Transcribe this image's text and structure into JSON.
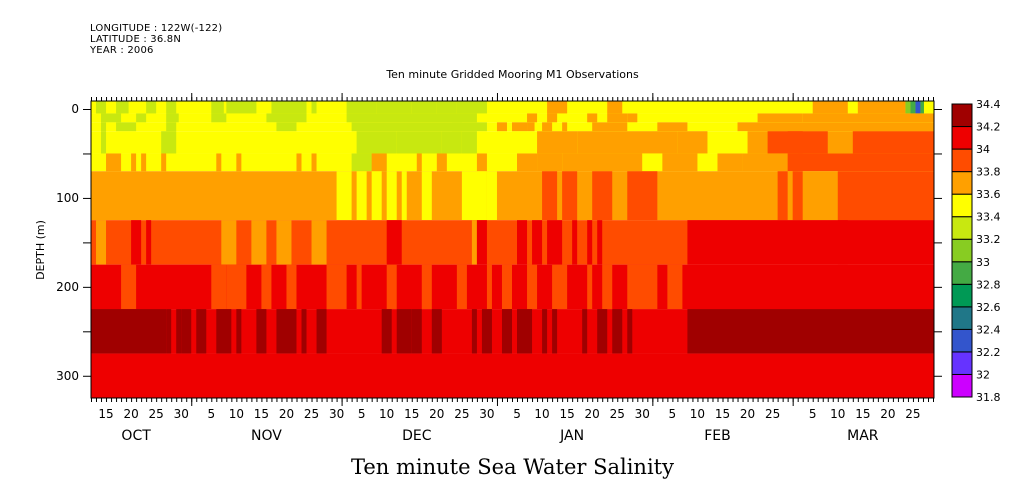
{
  "header": {
    "longitude": "LONGITUDE : 122W(-122)",
    "latitude": "LATITUDE : 36.8N",
    "year": "YEAR : 2006"
  },
  "chart_data": {
    "type": "heatmap",
    "title": "Ten minute Gridded Mooring M1 Observations",
    "bottom_title": "Ten minute Sea Water Salinity",
    "xlabel": "",
    "ylabel": "DEPTH (m)",
    "x_units": "days since 2006-10-01",
    "xlim": [
      11,
      179.2
    ],
    "ylim": [
      325,
      -9
    ],
    "y_ticks": [
      0,
      100,
      200,
      300
    ],
    "y_tick_labels": [
      "0",
      "100",
      "200",
      "300"
    ],
    "x_day_ticks": [
      {
        "day": 14,
        "label": "15"
      },
      {
        "day": 19,
        "label": "20"
      },
      {
        "day": 24,
        "label": "25"
      },
      {
        "day": 29,
        "label": "30"
      },
      {
        "day": 35,
        "label": "5"
      },
      {
        "day": 40,
        "label": "10"
      },
      {
        "day": 45,
        "label": "15"
      },
      {
        "day": 50,
        "label": "20"
      },
      {
        "day": 55,
        "label": "25"
      },
      {
        "day": 60,
        "label": "30"
      },
      {
        "day": 65,
        "label": "5"
      },
      {
        "day": 70,
        "label": "10"
      },
      {
        "day": 75,
        "label": "15"
      },
      {
        "day": 80,
        "label": "20"
      },
      {
        "day": 85,
        "label": "25"
      },
      {
        "day": 90,
        "label": "30"
      },
      {
        "day": 96,
        "label": "5"
      },
      {
        "day": 101,
        "label": "10"
      },
      {
        "day": 106,
        "label": "15"
      },
      {
        "day": 111,
        "label": "20"
      },
      {
        "day": 116,
        "label": "25"
      },
      {
        "day": 121,
        "label": "30"
      },
      {
        "day": 127,
        "label": "5"
      },
      {
        "day": 132,
        "label": "10"
      },
      {
        "day": 137,
        "label": "15"
      },
      {
        "day": 142,
        "label": "20"
      },
      {
        "day": 147,
        "label": "25"
      },
      {
        "day": 155,
        "label": "5"
      },
      {
        "day": 160,
        "label": "10"
      },
      {
        "day": 165,
        "label": "15"
      },
      {
        "day": 170,
        "label": "20"
      },
      {
        "day": 175,
        "label": "25"
      }
    ],
    "month_labels": [
      {
        "day": 20,
        "label": "OCT"
      },
      {
        "day": 46,
        "label": "NOV"
      },
      {
        "day": 76,
        "label": "DEC"
      },
      {
        "day": 107,
        "label": "JAN"
      },
      {
        "day": 136,
        "label": "FEB"
      },
      {
        "day": 165,
        "label": "MAR"
      }
    ],
    "month_boundaries": [
      31,
      61,
      92,
      123,
      151
    ],
    "colorbar": {
      "levels": [
        31.8,
        32,
        32.2,
        32.4,
        32.6,
        32.8,
        33,
        33.2,
        33.4,
        33.6,
        33.8,
        34,
        34.2,
        34.4
      ],
      "labels": [
        "31.8",
        "32",
        "32.2",
        "32.4",
        "32.6",
        "32.8",
        "33",
        "33.2",
        "33.4",
        "33.6",
        "33.8",
        "34",
        "34.2",
        "34.4"
      ],
      "colors": [
        "#cc00ff",
        "#6633ff",
        "#3355cc",
        "#207788",
        "#009955",
        "#44aa44",
        "#88cc22",
        "#c8e810",
        "#ffff00",
        "#ffa000",
        "#ff4c00",
        "#ee0000",
        "#a00000"
      ]
    },
    "depth_rows": [
      {
        "depth": 0,
        "top": -9,
        "bottom": 5,
        "base": 8,
        "segments": [
          [
            12,
            14,
            7
          ],
          [
            16,
            18.5,
            7
          ],
          [
            22,
            24,
            7
          ],
          [
            26,
            28,
            7
          ],
          [
            35,
            37.5,
            7
          ],
          [
            38,
            44,
            7
          ],
          [
            47,
            54,
            7
          ],
          [
            55,
            56,
            7
          ],
          [
            62,
            68,
            7
          ],
          [
            68,
            75,
            7
          ],
          [
            75,
            80,
            7
          ],
          [
            80,
            84,
            7
          ],
          [
            84,
            90,
            7
          ],
          [
            102,
            106,
            9
          ],
          [
            114,
            117,
            9
          ],
          [
            155,
            162,
            9
          ],
          [
            164,
            173.5,
            9
          ],
          [
            173.5,
            174.5,
            6
          ],
          [
            174.5,
            175.5,
            5
          ],
          [
            175.5,
            176.5,
            2
          ],
          [
            176.5,
            177.2,
            5
          ]
        ]
      },
      {
        "depth": 10,
        "top": 5,
        "bottom": 15,
        "base": 8,
        "segments": [
          [
            13,
            17,
            7
          ],
          [
            20,
            22,
            7
          ],
          [
            26,
            28.5,
            7
          ],
          [
            35,
            38,
            7
          ],
          [
            46,
            54,
            7
          ],
          [
            62,
            88,
            7
          ],
          [
            98,
            100,
            9
          ],
          [
            102,
            104,
            9
          ],
          [
            110,
            112,
            9
          ],
          [
            114,
            118,
            9
          ],
          [
            118,
            120,
            9
          ],
          [
            144,
            153,
            9
          ],
          [
            153,
            179.2,
            9
          ]
        ]
      },
      {
        "depth": 20,
        "top": 15,
        "bottom": 25,
        "base": 8,
        "segments": [
          [
            13,
            14,
            7
          ],
          [
            16,
            20,
            7
          ],
          [
            26,
            28,
            7
          ],
          [
            48,
            52,
            7
          ],
          [
            63,
            85,
            7
          ],
          [
            83,
            90,
            7
          ],
          [
            92,
            94,
            9
          ],
          [
            95,
            98,
            9
          ],
          [
            98,
            99.5,
            9
          ],
          [
            101,
            103,
            9
          ],
          [
            105,
            106,
            9
          ],
          [
            111,
            118,
            9
          ],
          [
            124,
            130,
            9
          ],
          [
            140,
            179.2,
            9
          ]
        ]
      },
      {
        "depth": 40,
        "top": 25,
        "bottom": 50,
        "base": 8,
        "segments": [
          [
            13,
            14,
            7
          ],
          [
            25,
            28,
            7
          ],
          [
            64,
            72,
            7
          ],
          [
            72,
            81,
            7
          ],
          [
            81,
            85,
            7
          ],
          [
            85,
            88,
            7
          ],
          [
            100,
            108,
            9
          ],
          [
            108,
            128,
            9
          ],
          [
            128,
            134,
            9
          ],
          [
            142,
            179.2,
            9
          ],
          [
            146,
            158,
            10
          ],
          [
            150,
            153,
            10
          ],
          [
            163,
            179.2,
            10
          ]
        ]
      },
      {
        "depth": 60,
        "top": 50,
        "bottom": 70,
        "base": 8,
        "segments": [
          [
            14,
            17,
            9
          ],
          [
            19,
            20,
            9
          ],
          [
            21,
            22,
            9
          ],
          [
            25,
            26,
            9
          ],
          [
            36,
            37,
            9
          ],
          [
            40,
            41,
            9
          ],
          [
            52,
            53,
            9
          ],
          [
            55,
            56,
            9
          ],
          [
            63,
            70,
            7
          ],
          [
            67,
            70,
            9
          ],
          [
            76,
            77,
            9
          ],
          [
            80,
            82,
            9
          ],
          [
            88,
            90,
            9
          ],
          [
            96,
            100,
            9
          ],
          [
            100,
            105,
            9
          ],
          [
            105,
            121,
            9
          ],
          [
            121,
            125,
            8
          ],
          [
            125,
            132,
            9
          ],
          [
            136,
            141,
            9
          ],
          [
            141,
            152,
            9
          ],
          [
            150,
            179.2,
            10
          ]
        ]
      },
      {
        "depth": 100,
        "top": 70,
        "bottom": 125,
        "base": 9,
        "segments": [
          [
            60,
            63,
            8
          ],
          [
            64,
            66,
            8
          ],
          [
            67,
            69,
            8
          ],
          [
            70,
            72,
            8
          ],
          [
            73,
            74,
            8
          ],
          [
            77,
            79,
            8
          ],
          [
            85,
            90,
            8
          ],
          [
            90,
            92,
            8
          ],
          [
            101,
            104,
            10
          ],
          [
            105,
            108,
            10
          ],
          [
            111,
            115,
            10
          ],
          [
            118,
            124,
            10
          ],
          [
            148,
            150,
            10
          ],
          [
            151,
            153,
            10
          ],
          [
            160,
            179.2,
            10
          ]
        ]
      },
      {
        "depth": 150,
        "top": 125,
        "bottom": 175,
        "base": 10,
        "segments": [
          [
            12,
            14,
            9
          ],
          [
            19,
            21,
            11
          ],
          [
            22,
            23,
            11
          ],
          [
            37,
            40,
            9
          ],
          [
            43,
            46,
            9
          ],
          [
            48,
            51,
            9
          ],
          [
            55,
            58,
            9
          ],
          [
            70,
            73,
            11
          ],
          [
            87,
            88,
            9
          ],
          [
            88,
            90,
            11
          ],
          [
            96,
            98,
            11
          ],
          [
            99,
            101,
            11
          ],
          [
            102,
            105,
            11
          ],
          [
            107,
            108,
            11
          ],
          [
            110,
            111,
            11
          ],
          [
            112,
            113,
            11
          ],
          [
            130,
            179.2,
            11
          ],
          [
            160,
            162,
            11
          ]
        ]
      },
      {
        "depth": 200,
        "top": 175,
        "bottom": 225,
        "base": 11,
        "segments": [
          [
            17,
            20,
            10
          ],
          [
            35,
            38,
            10
          ],
          [
            38,
            42,
            10
          ],
          [
            45,
            47,
            10
          ],
          [
            50,
            52,
            10
          ],
          [
            58,
            62,
            10
          ],
          [
            64,
            65,
            10
          ],
          [
            70,
            72,
            10
          ],
          [
            77,
            79,
            10
          ],
          [
            84,
            86,
            10
          ],
          [
            90,
            91,
            10
          ],
          [
            93,
            95,
            10
          ],
          [
            98,
            100,
            10
          ],
          [
            103,
            106,
            10
          ],
          [
            110,
            111,
            10
          ],
          [
            113,
            115,
            10
          ],
          [
            118,
            124,
            10
          ],
          [
            126,
            129,
            10
          ]
        ]
      },
      {
        "depth": 250,
        "top": 225,
        "bottom": 275,
        "base": 11,
        "segments": [
          [
            11,
            26,
            12
          ],
          [
            26,
            27,
            12
          ],
          [
            28,
            29,
            12
          ],
          [
            29,
            31,
            12
          ],
          [
            32,
            34,
            12
          ],
          [
            36,
            39,
            12
          ],
          [
            40,
            41,
            12
          ],
          [
            44,
            46,
            12
          ],
          [
            48,
            52,
            12
          ],
          [
            53,
            54,
            12
          ],
          [
            56,
            58,
            12
          ],
          [
            69,
            71,
            12
          ],
          [
            72,
            75,
            12
          ],
          [
            75,
            77,
            12
          ],
          [
            79,
            81,
            12
          ],
          [
            87,
            88,
            12
          ],
          [
            89,
            91,
            12
          ],
          [
            93,
            95,
            12
          ],
          [
            96,
            99,
            12
          ],
          [
            101,
            102,
            12
          ],
          [
            103,
            104,
            12
          ],
          [
            109,
            110,
            12
          ],
          [
            112,
            114,
            12
          ],
          [
            115,
            117,
            12
          ],
          [
            118,
            119,
            12
          ],
          [
            130,
            179.2,
            12
          ]
        ]
      },
      {
        "depth": 300,
        "top": 275,
        "bottom": 325,
        "base": 11,
        "segments": []
      }
    ]
  }
}
